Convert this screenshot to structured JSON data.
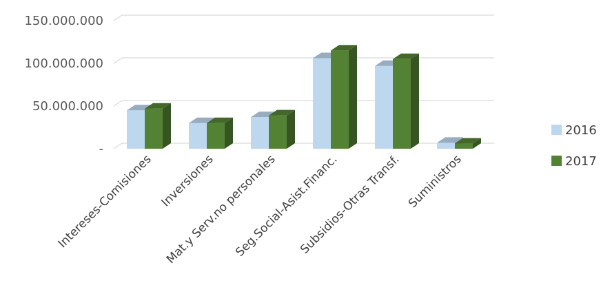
{
  "chart_data": {
    "type": "bar",
    "style": "3d-clustered-column",
    "categories": [
      "Intereses-Comisiones",
      "Inversiones",
      "Mat.y Serv.no personales",
      "Seg.Social-Asist.Financ.",
      "Subsidios-Otras Transf.",
      "Suministros"
    ],
    "series": [
      {
        "name": "2016",
        "color": "#BDD7EE",
        "values": [
          45000000,
          30000000,
          37000000,
          106000000,
          97000000,
          7000000
        ]
      },
      {
        "name": "2017",
        "color": "#548235",
        "values": [
          47000000,
          30000000,
          39000000,
          115000000,
          105000000,
          6000000
        ]
      }
    ],
    "yticks": [
      {
        "value": 0,
        "label": "-"
      },
      {
        "value": 50000000,
        "label": "50.000.000"
      },
      {
        "value": 100000000,
        "label": "100.000.000"
      },
      {
        "value": 150000000,
        "label": "150.000.000"
      }
    ],
    "ylim": [
      0,
      150000000
    ],
    "grid": true,
    "legend_position": "right",
    "title": "",
    "xlabel": "",
    "ylabel": ""
  }
}
